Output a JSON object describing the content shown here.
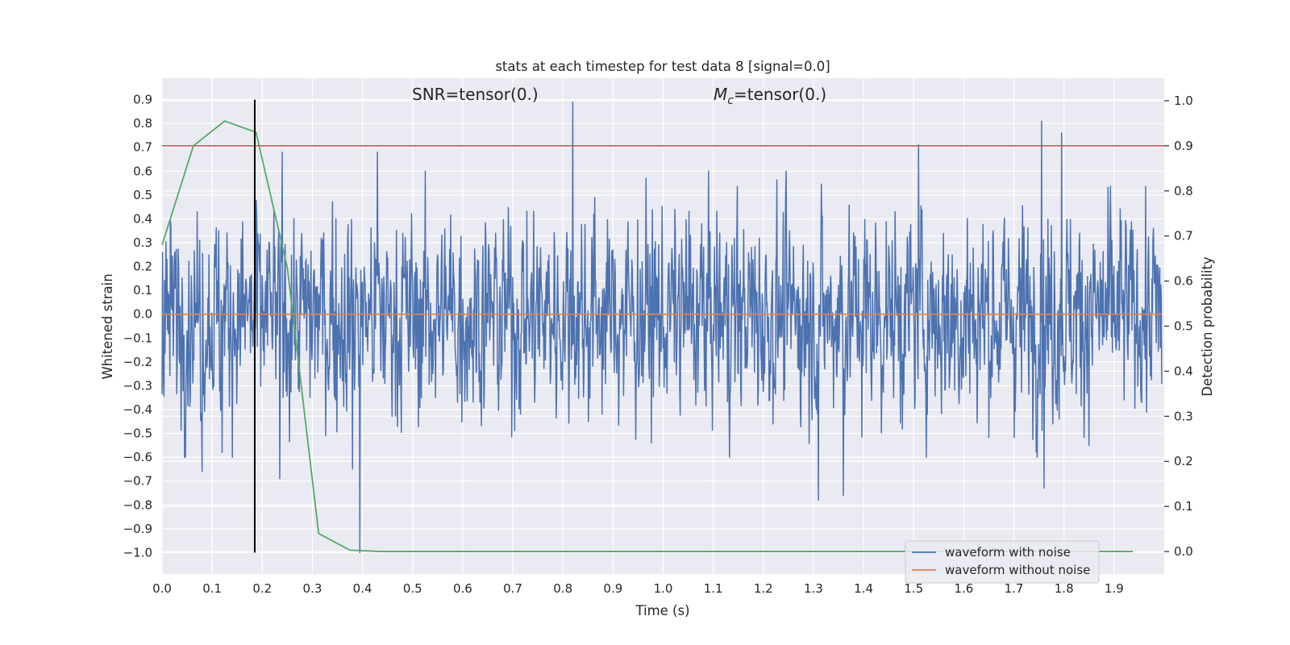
{
  "chart_data": {
    "type": "line",
    "title": "stats at each timestep for test data 8 [signal=0.0]",
    "xlabel": "Time (s)",
    "ylabel_left": "Whitened strain",
    "ylabel_right": "Detection probability",
    "xlim": [
      0.0,
      2.0
    ],
    "ylim_left": [
      -1.09,
      0.99
    ],
    "ylim_right": [
      -0.05,
      1.05
    ],
    "x_ticks": [
      "0.0",
      "0.1",
      "0.2",
      "0.3",
      "0.4",
      "0.5",
      "0.6",
      "0.7",
      "0.8",
      "0.9",
      "1.0",
      "1.1",
      "1.2",
      "1.3",
      "1.4",
      "1.5",
      "1.6",
      "1.7",
      "1.8",
      "1.9"
    ],
    "y_left_ticks": [
      "0.9",
      "0.8",
      "0.7",
      "0.6",
      "0.5",
      "0.4",
      "0.3",
      "0.2",
      "0.1",
      "0.0",
      "−0.1",
      "−0.2",
      "−0.3",
      "−0.4",
      "−0.5",
      "−0.6",
      "−0.7",
      "−0.8",
      "−0.9",
      "−1.0"
    ],
    "y_right_ticks": [
      "1.0",
      "0.9",
      "0.8",
      "0.7",
      "0.6",
      "0.5",
      "0.4",
      "0.3",
      "0.2",
      "0.1",
      "0.0"
    ],
    "grid": true,
    "annotations": {
      "snr": "SNR=tensor(0.)",
      "mc_symbol": "M",
      "mc_sub": "c",
      "mc_rest": "=tensor(0.)"
    },
    "threshold_line": {
      "axis": "right",
      "y": 0.9,
      "color": "#c44e52"
    },
    "marker_line": {
      "axis": "left",
      "x": 0.185,
      "y_range": [
        -1.0,
        0.9
      ],
      "color": "#000000"
    },
    "legend": {
      "placement": "lower-right",
      "entries": [
        "waveform with noise",
        "waveform without noise"
      ]
    },
    "series": [
      {
        "name": "waveform with noise",
        "axis": "left",
        "color": "#4c72b0",
        "x_range": [
          0.0,
          1.995
        ],
        "n_samples": 2048,
        "amplitude_range": [
          -1.0,
          0.89
        ],
        "spikes": [
          {
            "x": 0.08,
            "y": -0.66
          },
          {
            "x": 0.12,
            "y": -0.58
          },
          {
            "x": 0.235,
            "y": -0.69
          },
          {
            "x": 0.24,
            "y": 0.68
          },
          {
            "x": 0.38,
            "y": -0.65
          },
          {
            "x": 0.395,
            "y": -1.0
          },
          {
            "x": 0.43,
            "y": 0.68
          },
          {
            "x": 0.82,
            "y": 0.89
          },
          {
            "x": 1.31,
            "y": -0.78
          },
          {
            "x": 1.36,
            "y": -0.76
          },
          {
            "x": 1.51,
            "y": 0.71
          },
          {
            "x": 1.755,
            "y": 0.81
          },
          {
            "x": 1.76,
            "y": -0.73
          },
          {
            "x": 1.795,
            "y": 0.76
          }
        ]
      },
      {
        "name": "waveform without noise",
        "axis": "left",
        "color": "#dd8452",
        "x": [
          0.0,
          1.995
        ],
        "y": [
          0.0,
          0.0
        ]
      },
      {
        "name": "detection probability",
        "axis": "right",
        "color": "#55a868",
        "x": [
          0.0,
          0.0625,
          0.125,
          0.1875,
          0.25,
          0.3125,
          0.375,
          0.4375,
          0.5,
          1.0,
          1.5,
          1.9375
        ],
        "y": [
          0.68,
          0.9,
          0.955,
          0.93,
          0.63,
          0.04,
          0.003,
          0.0,
          0.0,
          0.0,
          0.0,
          0.0
        ]
      }
    ]
  }
}
